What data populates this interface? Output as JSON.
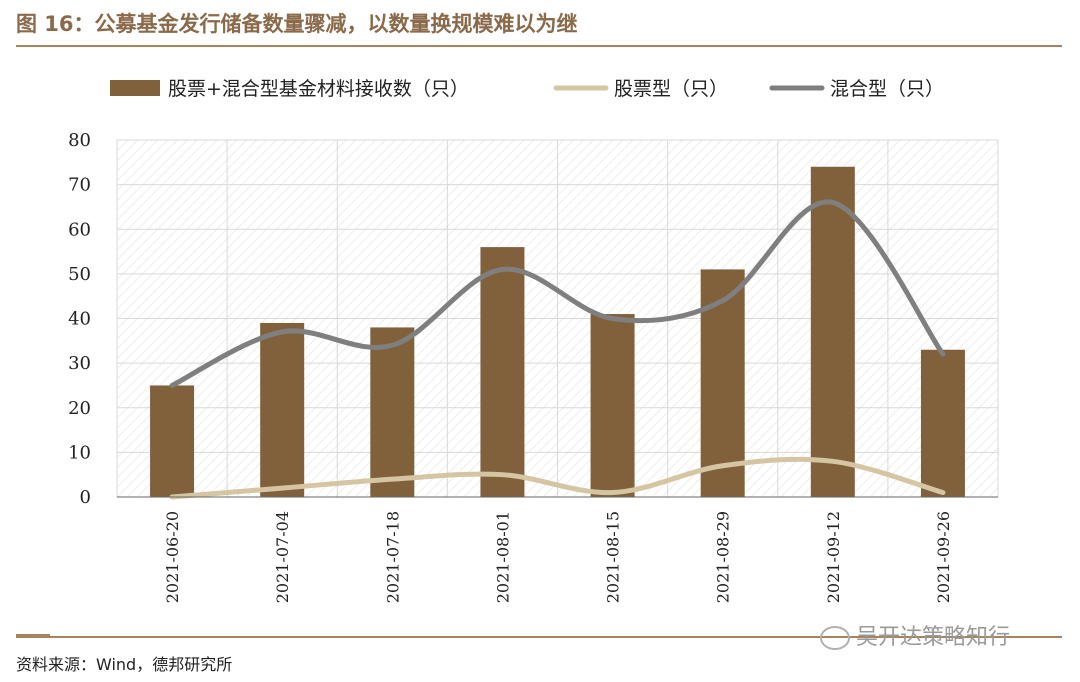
{
  "header": {
    "title": "图 16：公募基金发行储备数量骤减，以数量换规模难以为继"
  },
  "footer": {
    "source": "资料来源：Wind，德邦研究所",
    "watermark": "吴开达策略知行"
  },
  "colors": {
    "bar": "#80613c",
    "equity_line": "#d6c5a2",
    "mixed_line": "#7f7f7f",
    "rule": "#a8845e",
    "title": "#8a6a4a"
  },
  "chart_data": {
    "type": "bar",
    "categories": [
      "2021-06-20",
      "2021-07-04",
      "2021-07-18",
      "2021-08-01",
      "2021-08-15",
      "2021-08-29",
      "2021-09-12",
      "2021-09-26"
    ],
    "series": [
      {
        "name": "股票+混合型基金材料接收数（只）",
        "type": "bar",
        "values": [
          25,
          39,
          38,
          56,
          41,
          51,
          74,
          33
        ]
      },
      {
        "name": "股票型（只）",
        "type": "line",
        "values": [
          0,
          2,
          4,
          5,
          1,
          7,
          8,
          1
        ]
      },
      {
        "name": "混合型（只）",
        "type": "line",
        "values": [
          25,
          37,
          34,
          51,
          40,
          44,
          66,
          32
        ]
      }
    ],
    "ylim": [
      0,
      80
    ],
    "yticks": [
      0,
      10,
      20,
      30,
      40,
      50,
      60,
      70,
      80
    ],
    "grid": true,
    "legend": "top"
  }
}
